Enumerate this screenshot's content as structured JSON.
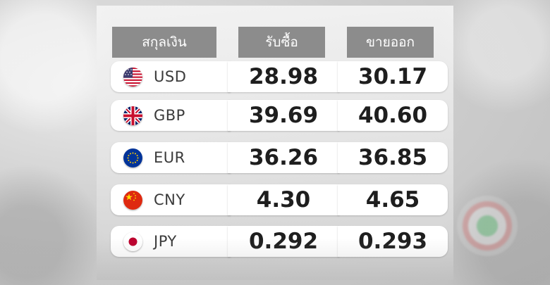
{
  "table": {
    "headers": {
      "currency": "สกุลเงิน",
      "buy": "รับซื้อ",
      "sell": "ขายออก"
    },
    "rows": [
      {
        "flag_icon": "us-flag-icon",
        "code": "USD",
        "buy": "28.98",
        "sell": "30.17"
      },
      {
        "flag_icon": "uk-flag-icon",
        "code": "GBP",
        "buy": "39.69",
        "sell": "40.60"
      },
      {
        "flag_icon": "eu-flag-icon",
        "code": "EUR",
        "buy": "36.26",
        "sell": "36.85"
      },
      {
        "flag_icon": "cn-flag-icon",
        "code": "CNY",
        "buy": "4.30",
        "sell": "4.65"
      },
      {
        "flag_icon": "jp-flag-icon",
        "code": "JPY",
        "buy": "0.292",
        "sell": "0.293"
      }
    ]
  },
  "colors": {
    "header_bg": "#8c8c8c",
    "cell_bg": "#ffffff",
    "value_text": "#1e1e1e"
  }
}
